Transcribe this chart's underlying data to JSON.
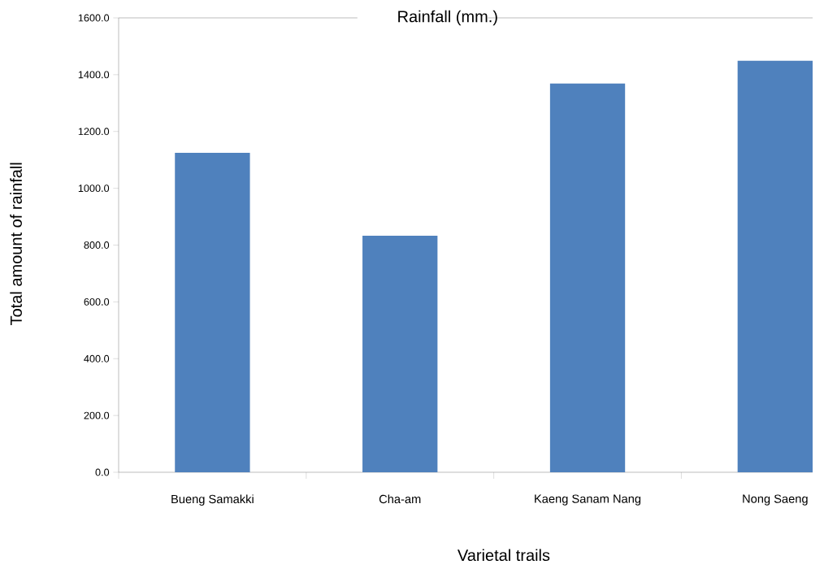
{
  "chart_data": {
    "type": "bar",
    "title": "Rainfall (mm.)",
    "xlabel": "Varietal trails",
    "ylabel": "Total amount of rainfall",
    "categories": [
      "Bueng Samakki",
      "Cha-am",
      "Kaeng Sanam Nang",
      "Nong Saeng"
    ],
    "values": [
      1125,
      833,
      1369,
      1449
    ],
    "color": "#4f81bd",
    "ylim": [
      0,
      1600
    ],
    "yticks": [
      {
        "value": 0,
        "label": "0.0"
      },
      {
        "value": 200,
        "label": "200.0"
      },
      {
        "value": 400,
        "label": "400.0"
      },
      {
        "value": 600,
        "label": "600.0"
      },
      {
        "value": 800,
        "label": "800.0"
      },
      {
        "value": 1000,
        "label": "1000.0"
      },
      {
        "value": 1200,
        "label": "1200.0"
      },
      {
        "value": 1400,
        "label": "1400.0"
      },
      {
        "value": 1600,
        "label": "1600.0"
      }
    ],
    "legend": false
  }
}
